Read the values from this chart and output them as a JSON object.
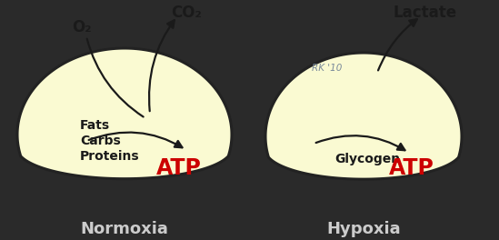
{
  "bg_color": "#2a2a2a",
  "cell_fill": "#FAFAD2",
  "cell_edge": "#222222",
  "arrow_color": "#1a1a1a",
  "atp_color": "#cc0000",
  "label_color": "#1a1a1a",
  "watermark_color": "#7a8a9a",
  "normoxia_label": "Normoxia",
  "hypoxia_label": "Hypoxia",
  "o2_label": "O₂",
  "co2_label": "CO₂",
  "lactate_label": "Lactate",
  "fats_label": "Fats",
  "carbs_label": "Carbs",
  "proteins_label": "Proteins",
  "glycogen_label": "Glycogen",
  "atp_label": "ATP",
  "watermark": "RK '10",
  "bottom_label_color": "#cccccc"
}
